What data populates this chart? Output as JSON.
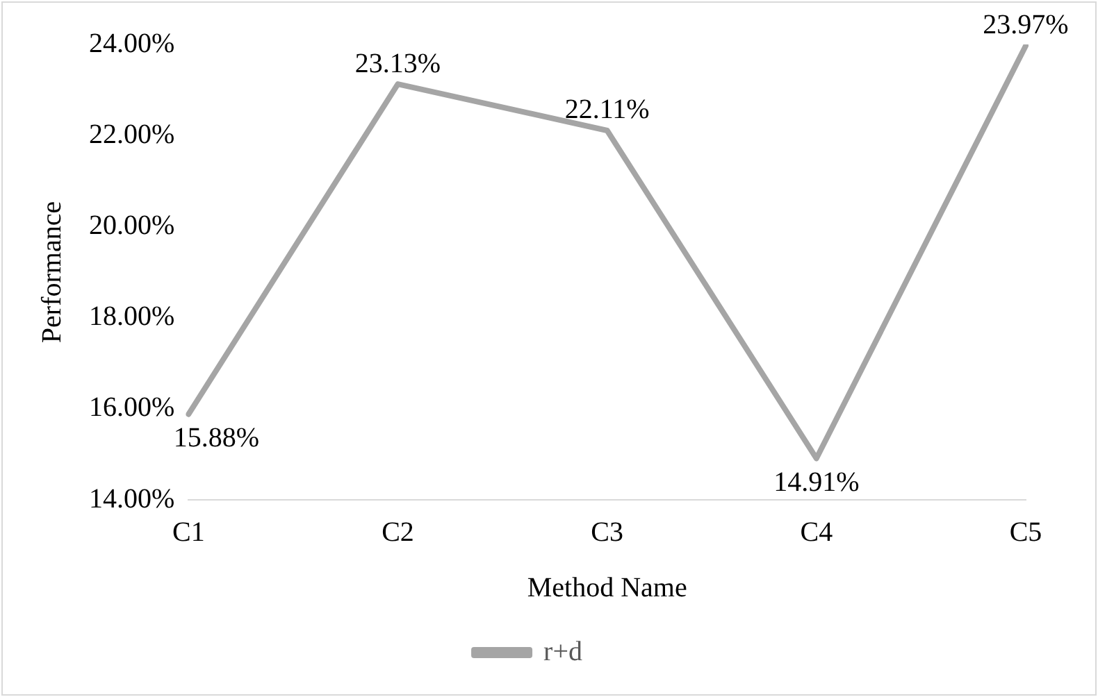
{
  "chart_data": {
    "type": "line",
    "xlabel": "Method Name",
    "ylabel": "Performance",
    "categories": [
      "C1",
      "C2",
      "C3",
      "C4",
      "C5"
    ],
    "series": [
      {
        "name": "r+d",
        "color": "#a5a5a5",
        "values": [
          15.88,
          23.13,
          22.11,
          14.91,
          23.97
        ],
        "value_labels": [
          "15.88%",
          "23.13%",
          "22.11%",
          "14.91%",
          "23.97%"
        ]
      }
    ],
    "ylim": [
      14,
      24
    ],
    "yticks": [
      {
        "value": 14,
        "label": "14.00%"
      },
      {
        "value": 16,
        "label": "16.00%"
      },
      {
        "value": 18,
        "label": "18.00%"
      },
      {
        "value": 20,
        "label": "20.00%"
      },
      {
        "value": 22,
        "label": "22.00%"
      },
      {
        "value": 24,
        "label": "24.00%"
      }
    ],
    "grid": false,
    "legend": "bottom",
    "marker": "none",
    "line_style": "solid"
  }
}
